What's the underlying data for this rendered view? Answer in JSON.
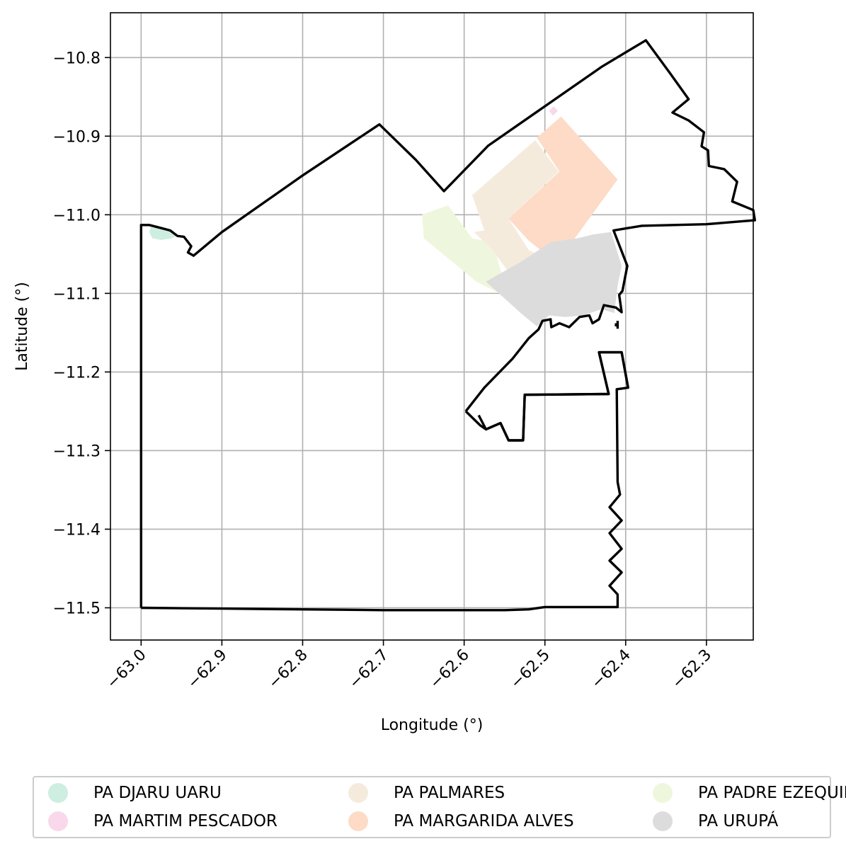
{
  "chart_data": {
    "type": "map",
    "xlabel": "Longitude (°)",
    "ylabel": "Latitude (°)",
    "xlim": [
      -63.038,
      -62.242
    ],
    "ylim": [
      -11.541,
      -10.743
    ],
    "grid": true,
    "xticks": [
      -63.0,
      -62.9,
      -62.8,
      -62.7,
      -62.6,
      -62.5,
      -62.4,
      -62.3
    ],
    "xtick_labels": [
      "−63.0",
      "−62.9",
      "−62.8",
      "−62.7",
      "−62.6",
      "−62.5",
      "−62.4",
      "−62.3"
    ],
    "yticks": [
      -10.8,
      -10.9,
      -11.0,
      -11.1,
      -11.2,
      -11.3,
      -11.4,
      -11.5
    ],
    "ytick_labels": [
      "−10.8",
      "−10.9",
      "−11.0",
      "−11.1",
      "−11.2",
      "−11.3",
      "−11.4",
      "−11.5"
    ],
    "legend_placement": "bottom",
    "regions": [
      {
        "name": "PA DJARU UARU",
        "color": "#cdeee0",
        "polygon": [
          [
            -62.988,
            -11.016
          ],
          [
            -62.968,
            -11.018
          ],
          [
            -62.955,
            -11.026
          ],
          [
            -62.962,
            -11.03
          ],
          [
            -62.975,
            -11.032
          ],
          [
            -62.986,
            -11.03
          ],
          [
            -62.99,
            -11.022
          ]
        ]
      },
      {
        "name": "PA MARGARIDA ALVES",
        "color": "#fddbc6",
        "polygon": [
          [
            -62.51,
            -10.902
          ],
          [
            -62.48,
            -10.875
          ],
          [
            -62.41,
            -10.955
          ],
          [
            -62.463,
            -11.03
          ],
          [
            -62.493,
            -11.055
          ],
          [
            -62.52,
            -11.033
          ],
          [
            -62.545,
            -11.005
          ],
          [
            -62.482,
            -10.945
          ]
        ]
      },
      {
        "name": "PA MARTIM PESCADOR",
        "color": "#f8d8ea",
        "polygon": [
          [
            -62.495,
            -10.868
          ],
          [
            -62.489,
            -10.862
          ],
          [
            -62.484,
            -10.868
          ],
          [
            -62.49,
            -10.874
          ]
        ]
      },
      {
        "name": "PA PADRE EZEQUIEL",
        "color": "#eef7dd",
        "polygon": [
          [
            -62.652,
            -11.0
          ],
          [
            -62.62,
            -10.988
          ],
          [
            -62.59,
            -11.03
          ],
          [
            -62.565,
            -11.035
          ],
          [
            -62.555,
            -11.07
          ],
          [
            -62.55,
            -11.085
          ],
          [
            -62.56,
            -11.098
          ],
          [
            -62.585,
            -11.085
          ],
          [
            -62.65,
            -11.03
          ]
        ]
      },
      {
        "name": "PA PALMARES",
        "color": "#f5ebdd",
        "polygon": [
          [
            -62.59,
            -10.975
          ],
          [
            -62.512,
            -10.905
          ],
          [
            -62.483,
            -10.945
          ],
          [
            -62.545,
            -11.005
          ],
          [
            -62.52,
            -11.045
          ],
          [
            -62.493,
            -11.058
          ],
          [
            -62.51,
            -11.075
          ],
          [
            -62.54,
            -11.08
          ],
          [
            -62.565,
            -11.045
          ],
          [
            -62.588,
            -11.022
          ],
          [
            -62.575,
            -11.02
          ]
        ]
      },
      {
        "name": "PA URUPÁ",
        "color": "#dcdcdc",
        "polygon": [
          [
            -62.573,
            -11.085
          ],
          [
            -62.53,
            -11.06
          ],
          [
            -62.493,
            -11.035
          ],
          [
            -62.46,
            -11.03
          ],
          [
            -62.44,
            -11.025
          ],
          [
            -62.418,
            -11.022
          ],
          [
            -62.405,
            -11.065
          ],
          [
            -62.41,
            -11.09
          ],
          [
            -62.414,
            -11.125
          ],
          [
            -62.43,
            -11.12
          ],
          [
            -62.452,
            -11.128
          ],
          [
            -62.475,
            -11.13
          ],
          [
            -62.495,
            -11.128
          ],
          [
            -62.51,
            -11.142
          ],
          [
            -62.53,
            -11.125
          ]
        ]
      }
    ],
    "boundary_lines": [
      [
        [
          -63.0,
          -11.5
        ],
        [
          -62.9,
          -11.501
        ],
        [
          -62.8,
          -11.502
        ],
        [
          -62.7,
          -11.503
        ],
        [
          -62.6,
          -11.503
        ],
        [
          -62.55,
          -11.503
        ],
        [
          -62.52,
          -11.502
        ],
        [
          -62.5,
          -11.499
        ],
        [
          -62.41,
          -11.499
        ],
        [
          -62.41,
          -11.483
        ],
        [
          -62.42,
          -11.472
        ],
        [
          -62.405,
          -11.455
        ],
        [
          -62.42,
          -11.44
        ],
        [
          -62.405,
          -11.425
        ],
        [
          -62.42,
          -11.405
        ],
        [
          -62.405,
          -11.389
        ],
        [
          -62.42,
          -11.372
        ],
        [
          -62.407,
          -11.356
        ],
        [
          -62.41,
          -11.34
        ],
        [
          -62.411,
          -11.222
        ],
        [
          -62.397,
          -11.22
        ],
        [
          -62.405,
          -11.175
        ],
        [
          -62.433,
          -11.175
        ],
        [
          -62.421,
          -11.228
        ],
        [
          -62.525,
          -11.229
        ],
        [
          -62.527,
          -11.287
        ],
        [
          -62.545,
          -11.287
        ],
        [
          -62.555,
          -11.265
        ],
        [
          -62.573,
          -11.273
        ],
        [
          -62.582,
          -11.255
        ]
      ],
      [
        [
          -62.598,
          -11.25
        ],
        [
          -62.58,
          -11.268
        ],
        [
          -62.573,
          -11.273
        ],
        [
          -62.555,
          -11.265
        ],
        [
          -62.545,
          -11.287
        ],
        [
          -62.527,
          -11.287
        ],
        [
          -62.525,
          -11.229
        ],
        [
          -62.421,
          -11.228
        ],
        [
          -62.433,
          -11.175
        ],
        [
          -62.405,
          -11.175
        ],
        [
          -62.397,
          -11.22
        ]
      ],
      [
        [
          -62.598,
          -11.25
        ],
        [
          -62.575,
          -11.22
        ],
        [
          -62.54,
          -11.183
        ],
        [
          -62.52,
          -11.157
        ],
        [
          -62.508,
          -11.146
        ],
        [
          -62.503,
          -11.135
        ],
        [
          -62.493,
          -11.133
        ],
        [
          -62.492,
          -11.143
        ],
        [
          -62.482,
          -11.138
        ],
        [
          -62.47,
          -11.143
        ],
        [
          -62.457,
          -11.13
        ],
        [
          -62.445,
          -11.128
        ],
        [
          -62.441,
          -11.138
        ],
        [
          -62.433,
          -11.133
        ],
        [
          -62.427,
          -11.115
        ],
        [
          -62.412,
          -11.118
        ],
        [
          -62.405,
          -11.124
        ],
        [
          -62.408,
          -11.102
        ],
        [
          -62.404,
          -11.097
        ],
        [
          -62.398,
          -11.065
        ],
        [
          -62.415,
          -11.02
        ],
        [
          -62.38,
          -11.014
        ],
        [
          -62.3,
          -11.012
        ],
        [
          -62.24,
          -11.007
        ],
        [
          -62.242,
          -10.994
        ],
        [
          -62.268,
          -10.983
        ],
        [
          -62.262,
          -10.958
        ],
        [
          -62.278,
          -10.942
        ],
        [
          -62.297,
          -10.938
        ],
        [
          -62.298,
          -10.918
        ],
        [
          -62.306,
          -10.913
        ],
        [
          -62.303,
          -10.895
        ],
        [
          -62.322,
          -10.88
        ],
        [
          -62.342,
          -10.87
        ],
        [
          -62.322,
          -10.853
        ],
        [
          -62.345,
          -10.82
        ],
        [
          -62.375,
          -10.778
        ],
        [
          -62.43,
          -10.812
        ],
        [
          -62.5,
          -10.862
        ],
        [
          -62.57,
          -10.912
        ],
        [
          -62.625,
          -10.97
        ],
        [
          -62.66,
          -10.93
        ],
        [
          -62.705,
          -10.885
        ],
        [
          -62.8,
          -10.95
        ],
        [
          -62.9,
          -11.022
        ],
        [
          -62.935,
          -11.052
        ],
        [
          -62.942,
          -11.048
        ],
        [
          -62.938,
          -11.04
        ],
        [
          -62.947,
          -11.028
        ],
        [
          -62.955,
          -11.027
        ],
        [
          -62.964,
          -11.02
        ],
        [
          -62.975,
          -11.017
        ],
        [
          -62.99,
          -11.013
        ],
        [
          -63.0,
          -11.013
        ],
        [
          -63.0,
          -11.5
        ]
      ],
      [
        [
          -62.41,
          -11.135
        ],
        [
          -62.41,
          -11.145
        ]
      ],
      [
        [
          -62.412,
          -11.138
        ],
        [
          -62.412,
          -11.142
        ]
      ]
    ],
    "legend": [
      "PA DJARU UARU",
      "PA MARTIM PESCADOR",
      "PA PALMARES",
      "PA MARGARIDA ALVES",
      "PA PADRE EZEQUIEL",
      "PA URUPÁ"
    ]
  }
}
